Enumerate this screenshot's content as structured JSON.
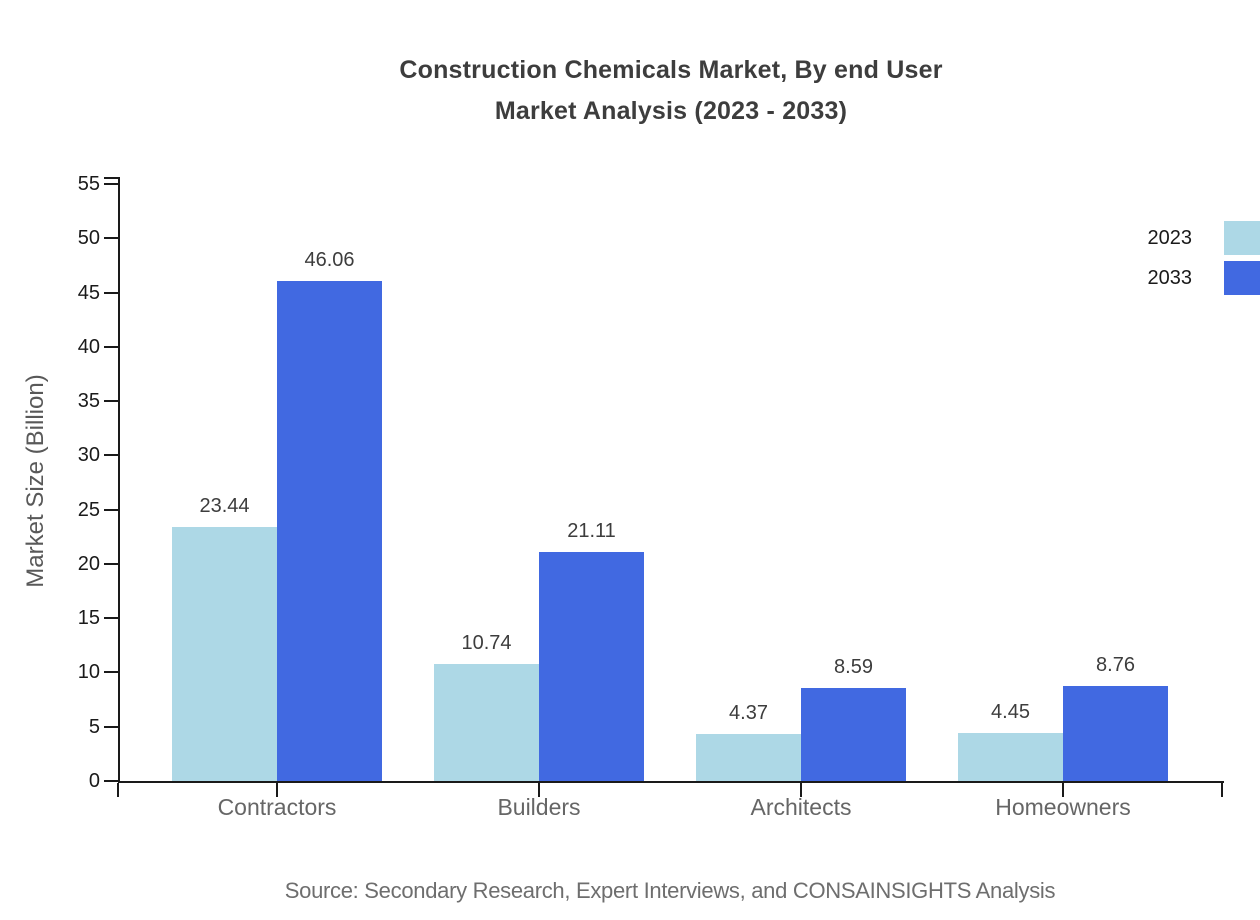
{
  "title": {
    "line1": "Construction Chemicals Market, By end User",
    "line2": "Market Analysis (2023 - 2033)"
  },
  "chart_data": {
    "type": "bar",
    "title": "Construction Chemicals Market, By end User Market Analysis (2023 - 2033)",
    "categories": [
      "Contractors",
      "Builders",
      "Architects",
      "Homeowners"
    ],
    "series": [
      {
        "name": "2023",
        "color": "#ADD8E6",
        "values": [
          23.44,
          10.74,
          4.37,
          4.45
        ]
      },
      {
        "name": "2033",
        "color": "#4169E1",
        "values": [
          46.06,
          21.11,
          8.59,
          8.76
        ]
      }
    ],
    "value_labels": [
      "23.44",
      "46.06",
      "10.74",
      "21.11",
      "4.37",
      "8.59",
      "4.45",
      "8.76"
    ],
    "xlabel": "",
    "ylabel": "Market Size (Billion)",
    "ylim": [
      0,
      55
    ],
    "ytick_step": 5,
    "yticks": [
      0,
      5,
      10,
      15,
      20,
      25,
      30,
      35,
      40,
      45,
      50,
      55
    ],
    "grid": false,
    "legend_position": "top-right-outside",
    "legend_entries": [
      "2023",
      "2033"
    ]
  },
  "source_note": "Source: Secondary Research, Expert Interviews, and CONSAINSIGHTS Analysis",
  "colors": {
    "background": "#ffffff",
    "series_2023": "#ADD8E6",
    "series_2033": "#4169E1",
    "axis": "#1a1a1a",
    "title_text": "#3d3d3d",
    "value_label_text": "#3d3d3d",
    "category_label_text": "#666666",
    "y_tick_label_text": "#1a1a1a",
    "y_axis_label_text": "#595959",
    "source_text": "#6e6e6e"
  }
}
